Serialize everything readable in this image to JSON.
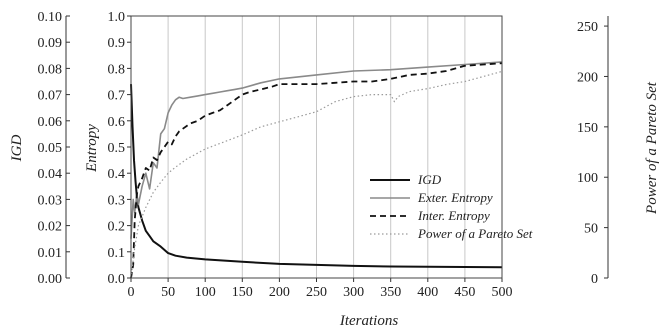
{
  "chart_data": {
    "type": "line",
    "xlabel": "Iterations",
    "xlim": [
      0,
      500
    ],
    "x_ticks": [
      0,
      50,
      100,
      150,
      200,
      250,
      300,
      350,
      400,
      450,
      500
    ],
    "grid": "vertical",
    "legend_position": "center-right",
    "axes": {
      "igd": {
        "label": "IGD",
        "lim": [
          0,
          0.1
        ],
        "ticks": [
          "0.00",
          "0.01",
          "0.02",
          "0.03",
          "0.04",
          "0.05",
          "0.06",
          "0.07",
          "0.08",
          "0.09",
          "0.10"
        ]
      },
      "entropy": {
        "label": "Entropy",
        "lim": [
          0,
          1.0
        ],
        "ticks": [
          "0.0",
          "0.1",
          "0.2",
          "0.3",
          "0.4",
          "0.5",
          "0.6",
          "0.7",
          "0.8",
          "0.9",
          "1.0"
        ]
      },
      "pareto": {
        "label": "Power of a Pareto Set",
        "lim": [
          0,
          260
        ],
        "ticks": [
          "0",
          "50",
          "100",
          "150",
          "200",
          "250"
        ]
      }
    },
    "series": [
      {
        "name": "IGD",
        "axis": "igd",
        "color": "#111111",
        "dash": "solid",
        "width": 2,
        "x": [
          0,
          2,
          4,
          6,
          8,
          10,
          15,
          20,
          25,
          30,
          40,
          50,
          60,
          75,
          100,
          150,
          200,
          250,
          300,
          350,
          400,
          450,
          500
        ],
        "y": [
          0.074,
          0.058,
          0.045,
          0.037,
          0.031,
          0.027,
          0.022,
          0.018,
          0.016,
          0.014,
          0.012,
          0.0095,
          0.0085,
          0.0078,
          0.0071,
          0.0062,
          0.0054,
          0.005,
          0.0046,
          0.0044,
          0.0043,
          0.0042,
          0.0041
        ]
      },
      {
        "name": "Exter. Entropy",
        "axis": "entropy",
        "color": "#8a8a8a",
        "dash": "solid",
        "width": 1.6,
        "x": [
          0,
          3,
          5,
          8,
          10,
          15,
          20,
          25,
          30,
          35,
          40,
          45,
          50,
          55,
          60,
          65,
          70,
          80,
          90,
          100,
          110,
          120,
          130,
          140,
          150,
          175,
          200,
          250,
          300,
          350,
          400,
          450,
          500
        ],
        "y": [
          0.15,
          0.3,
          0.25,
          0.32,
          0.28,
          0.35,
          0.4,
          0.34,
          0.44,
          0.42,
          0.55,
          0.57,
          0.63,
          0.66,
          0.68,
          0.69,
          0.685,
          0.69,
          0.695,
          0.7,
          0.705,
          0.71,
          0.715,
          0.72,
          0.725,
          0.745,
          0.76,
          0.775,
          0.79,
          0.795,
          0.805,
          0.815,
          0.825
        ]
      },
      {
        "name": "Inter. Entropy",
        "axis": "entropy",
        "color": "#111111",
        "dash": "dashed",
        "width": 1.8,
        "x": [
          0,
          3,
          5,
          8,
          10,
          15,
          20,
          25,
          30,
          35,
          40,
          45,
          50,
          55,
          60,
          65,
          70,
          80,
          90,
          100,
          110,
          120,
          130,
          140,
          150,
          160,
          175,
          190,
          200,
          225,
          250,
          275,
          300,
          325,
          350,
          375,
          400,
          425,
          450,
          475,
          500
        ],
        "y": [
          0.0,
          0.05,
          0.22,
          0.32,
          0.35,
          0.38,
          0.42,
          0.41,
          0.46,
          0.45,
          0.48,
          0.5,
          0.52,
          0.51,
          0.54,
          0.56,
          0.57,
          0.59,
          0.6,
          0.62,
          0.63,
          0.64,
          0.66,
          0.68,
          0.7,
          0.71,
          0.72,
          0.73,
          0.74,
          0.74,
          0.74,
          0.745,
          0.75,
          0.75,
          0.76,
          0.775,
          0.78,
          0.79,
          0.81,
          0.815,
          0.82
        ]
      },
      {
        "name": "Power of a Pareto Set",
        "axis": "pareto",
        "color": "#9a9a9a",
        "dash": "dotted",
        "width": 1.2,
        "x": [
          0,
          5,
          10,
          20,
          30,
          40,
          50,
          60,
          75,
          100,
          125,
          150,
          175,
          200,
          225,
          250,
          275,
          300,
          325,
          350,
          355,
          360,
          375,
          400,
          425,
          450,
          475,
          500
        ],
        "y": [
          0,
          30,
          52,
          70,
          85,
          95,
          104,
          110,
          118,
          128,
          135,
          142,
          150,
          155,
          160,
          165,
          175,
          180,
          182,
          182,
          175,
          180,
          185,
          188,
          192,
          195,
          200,
          205
        ]
      }
    ]
  }
}
